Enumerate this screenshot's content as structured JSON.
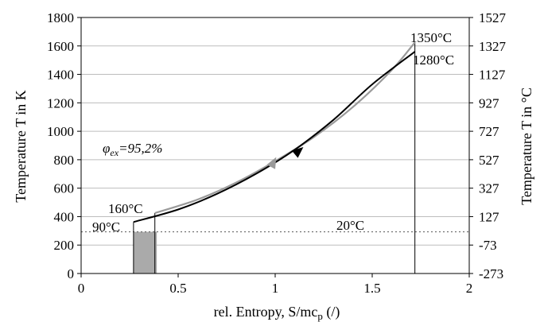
{
  "chart_data": {
    "type": "line",
    "xlabel": "rel. Entropy, S/mc",
    "xlabel_sub": "p",
    "xlabel_suffix": " (/)",
    "ylabel": "Temperature T in K",
    "y2label": "Temperature T in °C",
    "xlim": [
      0,
      2
    ],
    "ylim": [
      0,
      1800
    ],
    "x_ticks": [
      0,
      0.5,
      1,
      1.5,
      2
    ],
    "x_tick_labels": [
      "0",
      "0.5",
      "1",
      "1.5",
      "2"
    ],
    "y_ticks": [
      0,
      200,
      400,
      600,
      800,
      1000,
      1200,
      1400,
      1600,
      1800
    ],
    "y_tick_labels": [
      "0",
      "200",
      "400",
      "600",
      "800",
      "1000",
      "1200",
      "1400",
      "1600",
      "1800"
    ],
    "y2_ticks": [
      0,
      200,
      400,
      600,
      800,
      1000,
      1200,
      1400,
      1600,
      1800
    ],
    "y2_tick_labels": [
      "-273",
      "-73",
      "127",
      "327",
      "527",
      "727",
      "927",
      "1127",
      "1327",
      "1527"
    ],
    "grid": "horizontal",
    "series": [
      {
        "color": "#9a9a9a",
        "x": [
          0.38,
          0.6,
          0.8,
          1.0,
          1.2,
          1.4,
          1.6,
          1.72
        ],
        "y": [
          425,
          520,
          640,
          790,
          960,
          1170,
          1430,
          1625
        ]
      },
      {
        "color": "#000000",
        "x": [
          0.27,
          0.5,
          0.7,
          0.9,
          1.1,
          1.3,
          1.5,
          1.72
        ],
        "y": [
          362,
          450,
          560,
          700,
          870,
          1080,
          1330,
          1560
        ]
      }
    ],
    "reference_line": {
      "y": 293,
      "style": "dotted"
    },
    "vertical_line": {
      "x": 1.72
    },
    "shaded_area": {
      "x_start": 0.27,
      "x_end": 0.39,
      "y_top": 293,
      "color": "#aaaaaa"
    },
    "annotations": {
      "t_1350": "1350°C",
      "t_1280": "1280°C",
      "t_160": "160°C",
      "t_90": "90°C",
      "t_20": "20°C",
      "efficiency": "φex=95,2%",
      "efficiency_symbol": "φ",
      "efficiency_sub": "ex",
      "efficiency_value": "=95,2%"
    }
  }
}
